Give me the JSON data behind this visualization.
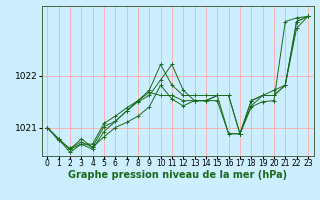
{
  "background_color": "#cceeff",
  "plot_bg_color": "#cceeff",
  "grid_color": "#ffaaaa",
  "line_color": "#1a6b1a",
  "xlabel": "Graphe pression niveau de la mer (hPa)",
  "xlabel_fontsize": 7,
  "ytick_fontsize": 6.5,
  "xtick_fontsize": 5.5,
  "ylim": [
    1020.45,
    1023.35
  ],
  "xlim": [
    -0.5,
    23.5
  ],
  "yticks": [
    1021,
    1022
  ],
  "xticks": [
    0,
    1,
    2,
    3,
    4,
    5,
    6,
    7,
    8,
    9,
    10,
    11,
    12,
    13,
    14,
    15,
    16,
    17,
    18,
    19,
    20,
    21,
    22,
    23
  ],
  "series": [
    [
      1021.0,
      1020.75,
      1020.6,
      1020.72,
      1020.62,
      1020.82,
      1021.0,
      1021.1,
      1021.22,
      1021.4,
      1021.82,
      1021.55,
      1021.42,
      1021.52,
      1021.52,
      1021.52,
      1020.88,
      1020.88,
      1021.4,
      1021.5,
      1021.52,
      1023.05,
      1023.12,
      1023.15
    ],
    [
      1021.0,
      1020.78,
      1020.52,
      1020.68,
      1020.58,
      1020.92,
      1021.12,
      1021.32,
      1021.5,
      1021.62,
      1021.92,
      1022.22,
      1021.72,
      1021.52,
      1021.52,
      1021.62,
      1020.88,
      1020.88,
      1021.52,
      1021.62,
      1021.62,
      1021.82,
      1023.05,
      1023.15
    ],
    [
      1021.0,
      1020.78,
      1020.58,
      1020.68,
      1020.68,
      1021.08,
      1021.22,
      1021.38,
      1021.52,
      1021.68,
      1021.62,
      1021.62,
      1021.52,
      1021.52,
      1021.52,
      1021.62,
      1021.62,
      1020.88,
      1021.52,
      1021.62,
      1021.72,
      1021.82,
      1022.92,
      1023.15
    ],
    [
      1021.0,
      1020.78,
      1020.58,
      1020.78,
      1020.62,
      1021.02,
      1021.12,
      1021.32,
      1021.52,
      1021.72,
      1022.22,
      1021.82,
      1021.62,
      1021.62,
      1021.62,
      1021.62,
      1021.62,
      1020.88,
      1021.42,
      1021.62,
      1021.62,
      1021.82,
      1023.05,
      1023.15
    ]
  ]
}
